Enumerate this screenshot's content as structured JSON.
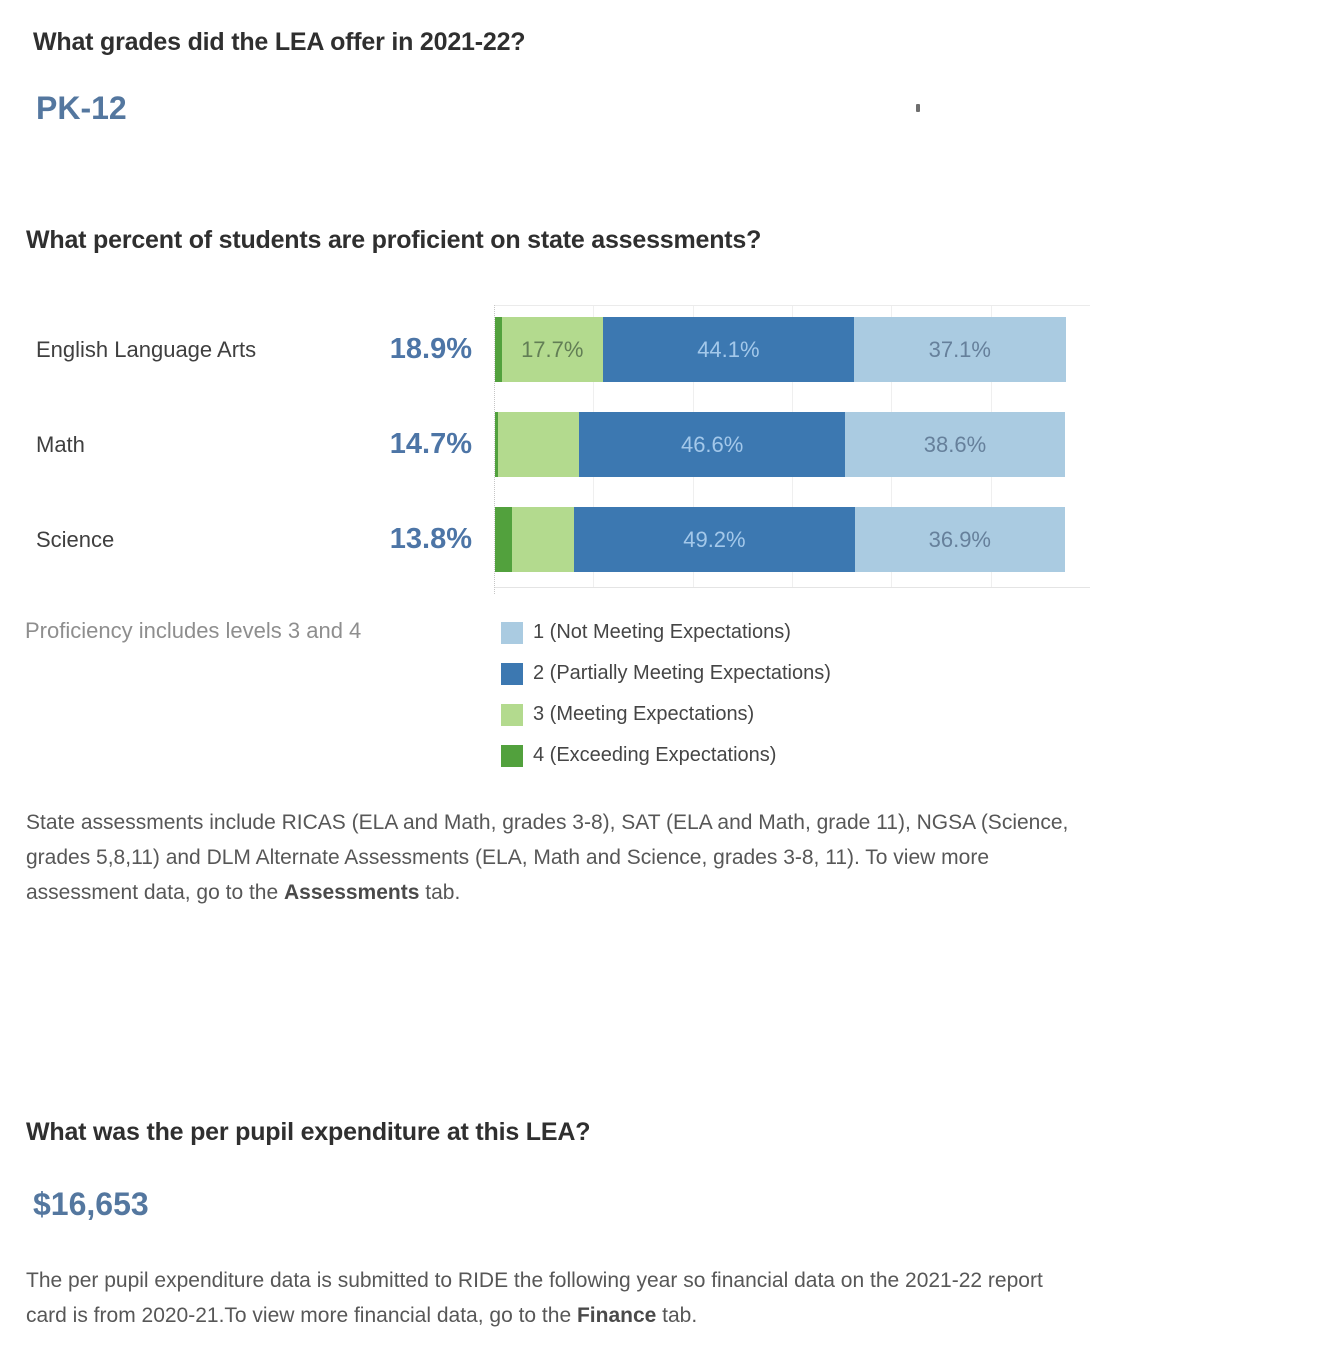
{
  "grades_section": {
    "question": "What grades did the LEA offer in 2021-22?",
    "answer": "PK-12"
  },
  "assessment_section": {
    "question": "What percent of students are proficient on state assessments?",
    "proficiency_note": "Proficiency includes levels 3 and 4",
    "footnote": {
      "pre": "State assessments include RICAS (ELA and Math, grades 3-8), SAT (ELA and Math, grade 11), NGSA (Science, grades 5,8,11) and DLM Alternate Assessments (ELA, Math and Science, grades 3-8, 11). To view more assessment data, go to the ",
      "bold": "Assessments",
      "post": " tab."
    }
  },
  "chart_data": {
    "type": "bar",
    "stacked": true,
    "orientation": "horizontal",
    "unit": "percent of students",
    "axis_range": [
      0,
      100
    ],
    "grid": "faint vertical gridlines, zero axis dotted",
    "categories": [
      "English Language Arts",
      "Math",
      "Science"
    ],
    "proficiency_values": [
      "18.9%",
      "14.7%",
      "13.8%"
    ],
    "segment_order_left_to_right": [
      "4",
      "3",
      "2",
      "1"
    ],
    "series": [
      {
        "name": "4 (Exceeding Expectations)",
        "color": "#52a13d",
        "values": [
          1.2,
          0.5,
          2.9
        ],
        "labels": [
          "",
          "",
          ""
        ],
        "label_color": "#ffffff"
      },
      {
        "name": "3 (Meeting Expectations)",
        "color": "#b3da8e",
        "values": [
          17.7,
          14.3,
          11.0
        ],
        "labels": [
          "17.7%",
          "",
          ""
        ],
        "label_color": "#627e55"
      },
      {
        "name": "2 (Partially Meeting Expectations)",
        "color": "#3c78b1",
        "values": [
          44.1,
          46.6,
          49.2
        ],
        "labels": [
          "44.1%",
          "46.6%",
          "49.2%"
        ],
        "label_color": "#a3c8ea"
      },
      {
        "name": "1 (Not Meeting Expectations)",
        "color": "#aacbe1",
        "values": [
          37.1,
          38.6,
          36.9
        ],
        "labels": [
          "37.1%",
          "38.6%",
          "36.9%"
        ],
        "label_color": "#66809b"
      }
    ]
  },
  "legend": {
    "items": [
      {
        "label": "1 (Not Meeting Expectations)",
        "color": "#aacbe1"
      },
      {
        "label": "2 (Partially Meeting Expectations)",
        "color": "#3c78b1"
      },
      {
        "label": "3 (Meeting Expectations)",
        "color": "#b3da8e"
      },
      {
        "label": "4 (Exceeding Expectations)",
        "color": "#52a13d"
      }
    ]
  },
  "expenditure_section": {
    "question": "What was the per pupil expenditure at this LEA?",
    "answer": "$16,653",
    "footnote": {
      "pre": "The per pupil expenditure data is submitted to RIDE the following year so financial data on the 2021-22 report card is from 2020-21.To view more financial data, go to the ",
      "bold": "Finance",
      "post": " tab."
    }
  },
  "colors": {
    "answer_blue": "#54779f",
    "value_blue": "#4d75a6",
    "heading": "#2f2f2f",
    "body_text": "#575757",
    "muted_text": "#8e8e8e",
    "finance_link": "#3a6ca5"
  }
}
